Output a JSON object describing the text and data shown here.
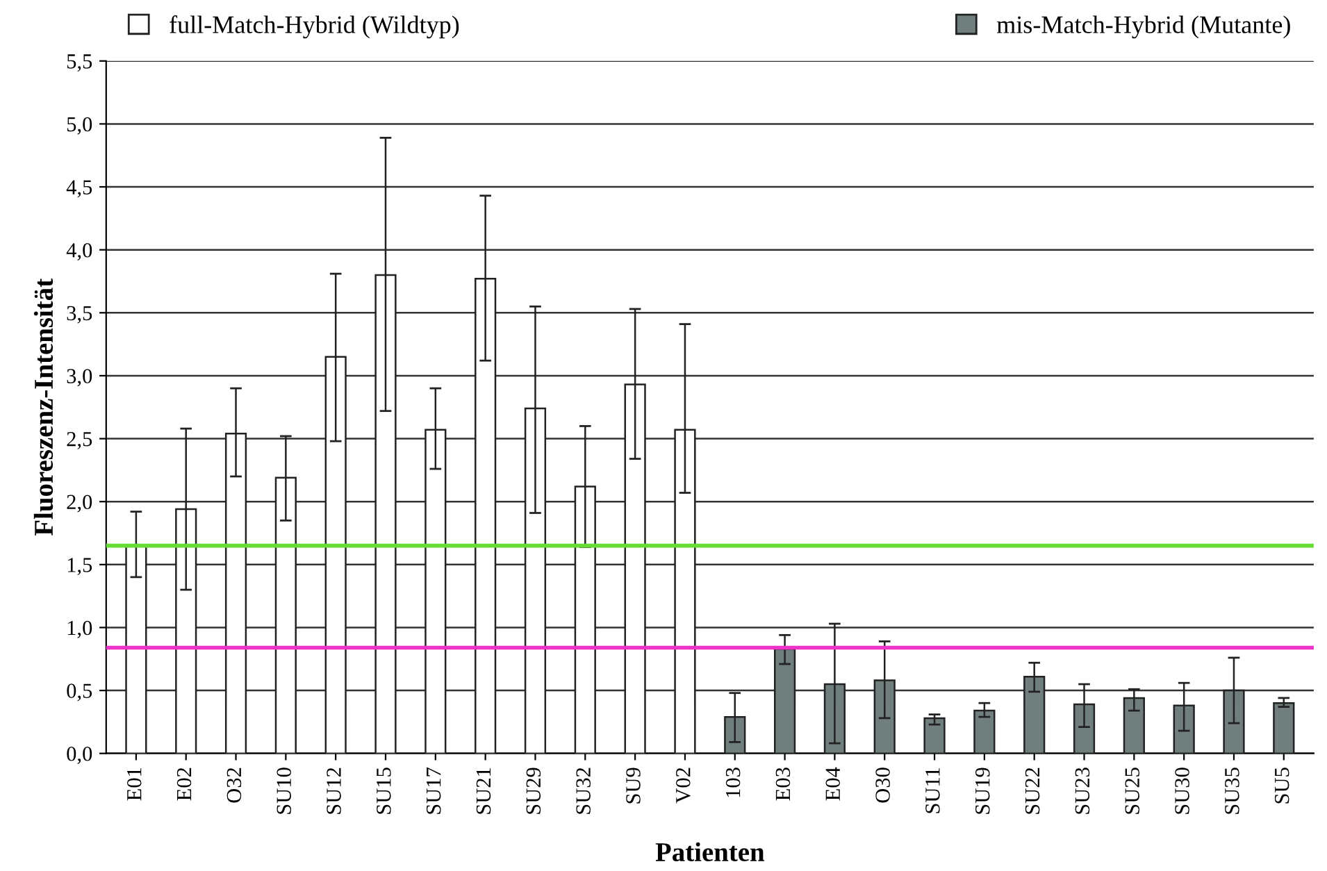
{
  "chart_data": {
    "type": "bar",
    "xlabel": "Patienten",
    "ylabel": "Fluoreszenz-Intensität",
    "categories": [
      "E01",
      "E02",
      "O32",
      "SU10",
      "SU12",
      "SU15",
      "SU17",
      "SU21",
      "SU29",
      "SU32",
      "SU9",
      "V02",
      "103",
      "E03",
      "E04",
      "O30",
      "SU11",
      "SU19",
      "SU22",
      "SU23",
      "SU25",
      "SU30",
      "SU35",
      "SU5"
    ],
    "series": [
      {
        "name": "full-Match-Hybrid (Wildtyp)",
        "color": "#ffffff",
        "values": [
          1.65,
          1.94,
          2.54,
          2.19,
          3.15,
          3.8,
          2.57,
          3.77,
          2.74,
          2.12,
          2.93,
          2.57,
          null,
          null,
          null,
          null,
          null,
          null,
          null,
          null,
          null,
          null,
          null,
          null
        ],
        "errors": [
          [
            1.4,
            1.92
          ],
          [
            1.3,
            2.58
          ],
          [
            2.2,
            2.9
          ],
          [
            1.85,
            2.52
          ],
          [
            2.48,
            3.81
          ],
          [
            2.72,
            4.89
          ],
          [
            2.26,
            2.9
          ],
          [
            3.12,
            4.43
          ],
          [
            1.91,
            3.55
          ],
          [
            1.64,
            2.6
          ],
          [
            2.34,
            3.53
          ],
          [
            2.07,
            3.41
          ],
          null,
          null,
          null,
          null,
          null,
          null,
          null,
          null,
          null,
          null,
          null,
          null
        ]
      },
      {
        "name": "mis-Match-Hybrid (Mutante)",
        "color": "#707e7e",
        "values": [
          null,
          null,
          null,
          null,
          null,
          null,
          null,
          null,
          null,
          null,
          null,
          null,
          0.29,
          0.83,
          0.55,
          0.58,
          0.28,
          0.34,
          0.61,
          0.39,
          0.44,
          0.38,
          0.5,
          0.4
        ],
        "errors": [
          null,
          null,
          null,
          null,
          null,
          null,
          null,
          null,
          null,
          null,
          null,
          null,
          [
            0.09,
            0.48
          ],
          [
            0.71,
            0.94
          ],
          [
            0.08,
            1.03
          ],
          [
            0.28,
            0.89
          ],
          [
            0.23,
            0.31
          ],
          [
            0.29,
            0.4
          ],
          [
            0.49,
            0.72
          ],
          [
            0.21,
            0.55
          ],
          [
            0.34,
            0.51
          ],
          [
            0.18,
            0.56
          ],
          [
            0.24,
            0.76
          ],
          [
            0.37,
            0.44
          ]
        ]
      }
    ],
    "ylim": [
      0,
      5.5
    ],
    "yticks": [
      {
        "value": 0,
        "label": "0,0"
      },
      {
        "value": 0.5,
        "label": "0,5"
      },
      {
        "value": 1,
        "label": "1,0"
      },
      {
        "value": 1.5,
        "label": "1,5"
      },
      {
        "value": 2,
        "label": "2,0"
      },
      {
        "value": 2.5,
        "label": "2,5"
      },
      {
        "value": 3,
        "label": "3,0"
      },
      {
        "value": 3.5,
        "label": "3,5"
      },
      {
        "value": 4,
        "label": "4,0"
      },
      {
        "value": 4.5,
        "label": "4,5"
      },
      {
        "value": 5,
        "label": "5,0"
      },
      {
        "value": 5.5,
        "label": "5,5"
      }
    ],
    "ref_lines": [
      {
        "axis": "y",
        "value": 1.65,
        "color": "#66dd33"
      },
      {
        "axis": "y",
        "value": 0.84,
        "color": "#ee33cc"
      }
    ],
    "grid": "y",
    "legend": "top"
  }
}
